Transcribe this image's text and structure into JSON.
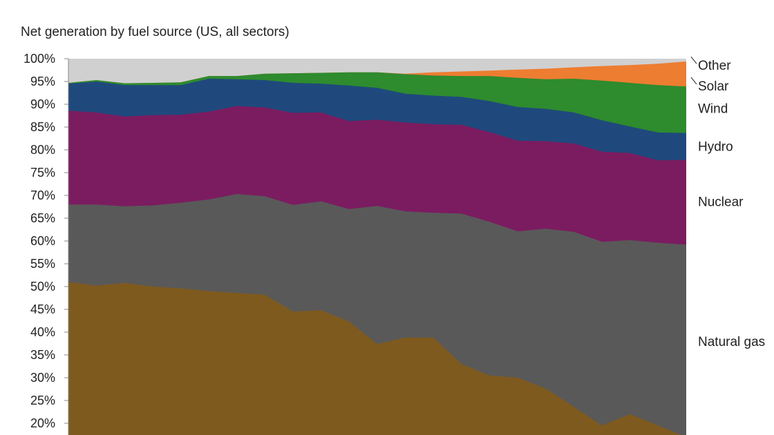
{
  "chart_data": {
    "type": "area",
    "stacked": true,
    "normalized": true,
    "title": "Net generation by fuel source (US, all sectors)",
    "xlabel": "",
    "ylabel": "",
    "ylim": [
      17,
      100
    ],
    "y_ticks": [
      "100%",
      "95%",
      "90%",
      "85%",
      "80%",
      "75%",
      "70%",
      "65%",
      "60%",
      "55%",
      "50%",
      "45%",
      "40%",
      "35%",
      "30%",
      "25%",
      "20%"
    ],
    "grid": false,
    "legend": "right, labels beside the stacked bands",
    "x": [
      0,
      1,
      2,
      3,
      4,
      5,
      6,
      7,
      8,
      9,
      10,
      11,
      12,
      13,
      14,
      15,
      16,
      17,
      18,
      19,
      20,
      21,
      22,
      23,
      24,
      25,
      26,
      27
    ],
    "series": [
      {
        "name": "Natural gas",
        "color": "#7f5a1e",
        "cumulative": [
          51,
          50.2,
          50.8,
          50,
          49.6,
          49,
          48.6,
          48.2,
          44.5,
          44.8,
          42.3,
          37.4,
          38.8,
          38.8,
          33,
          30.5,
          30,
          27.6,
          23.6,
          19.5,
          22,
          19.5,
          17,
          0,
          0,
          0,
          0,
          0
        ]
      },
      {
        "name": "",
        "color": "#595959",
        "cumulative": [
          68,
          68,
          67.6,
          67.8,
          68.4,
          69.1,
          70.3,
          69.8,
          67.9,
          68.7,
          67,
          67.7,
          66.5,
          66.2,
          66,
          64.2,
          62.1,
          62.7,
          62,
          59.8,
          60.2,
          59.6,
          59.2,
          0,
          0,
          0,
          0,
          0
        ]
      },
      {
        "name": "Nuclear",
        "color": "#7b1c60",
        "cumulative": [
          88.6,
          88.2,
          87.3,
          87.6,
          87.7,
          88.4,
          89.6,
          89.3,
          88.1,
          88.2,
          86.3,
          86.6,
          86,
          85.6,
          85.5,
          83.9,
          82,
          81.9,
          81.4,
          79.6,
          79.3,
          77.7,
          77.8,
          0,
          0,
          0,
          0,
          0
        ]
      },
      {
        "name": "Hydro",
        "color": "#1f497d",
        "cumulative": [
          94.5,
          95,
          94.2,
          94.2,
          94.2,
          95.6,
          95.5,
          95.3,
          94.7,
          94.5,
          94.1,
          93.6,
          92.3,
          91.9,
          91.6,
          90.7,
          89.4,
          89,
          88.2,
          86.5,
          85.1,
          83.8,
          83.7,
          0,
          0,
          0,
          0,
          0
        ]
      },
      {
        "name": "Wind",
        "color": "#2e8b2e",
        "cumulative": [
          94.7,
          95.3,
          94.6,
          94.7,
          94.8,
          96.2,
          96.2,
          96.7,
          96.8,
          96.9,
          97,
          97,
          96.6,
          96.3,
          96.2,
          96.2,
          95.8,
          95.5,
          95.6,
          95.2,
          94.7,
          94.2,
          93.9,
          0,
          0,
          0,
          0,
          0
        ]
      },
      {
        "name": "Solar",
        "color": "#ed7d31",
        "cumulative": [
          94.7,
          95.3,
          94.6,
          94.7,
          94.8,
          96.2,
          96.2,
          96.7,
          96.8,
          96.9,
          97,
          97,
          96.7,
          97,
          97.2,
          97.4,
          97.6,
          97.8,
          98.1,
          98.4,
          98.6,
          98.9,
          99.4,
          0,
          0,
          0,
          0,
          0
        ]
      },
      {
        "name": "Other",
        "color": "#d0d0d0",
        "cumulative": [
          100,
          100,
          100,
          100,
          100,
          100,
          100,
          100,
          100,
          100,
          100,
          100,
          100,
          100,
          100,
          100,
          100,
          100,
          100,
          100,
          100,
          100,
          100,
          0,
          0,
          0,
          0,
          0
        ]
      }
    ],
    "legend_labels": [
      {
        "text": "Other",
        "leader": true
      },
      {
        "text": "Solar",
        "leader": true
      },
      {
        "text": "Wind",
        "leader": false
      },
      {
        "text": "Hydro",
        "leader": false
      },
      {
        "text": "Nuclear",
        "leader": false
      },
      {
        "text": "Natural gas",
        "leader": false
      }
    ]
  }
}
